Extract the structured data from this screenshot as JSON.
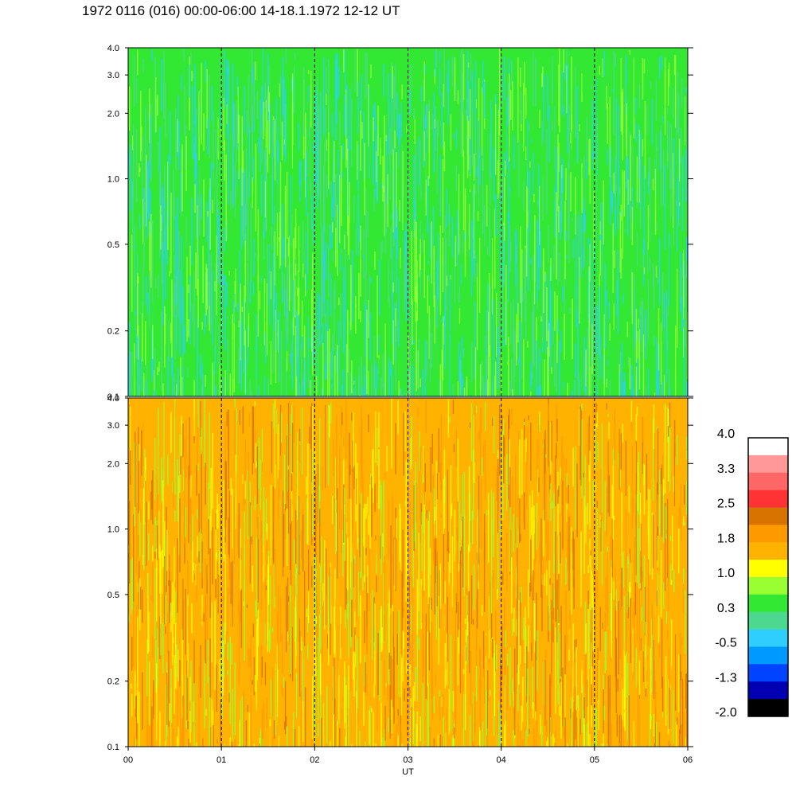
{
  "title": "1972 0116 (016) 00:00-06:00 14-18.1.1972  12-12 UT",
  "chart_data": [
    {
      "type": "heatmap",
      "panel": "top",
      "x_range": [
        "00",
        "06"
      ],
      "y_ticks": [
        "0.1",
        "0.2",
        "0.5",
        "1.0",
        "2.0",
        "3.0",
        "4.0"
      ],
      "y_values": [
        0.1,
        0.2,
        0.5,
        1.0,
        2.0,
        3.0,
        4.0
      ],
      "ylim": [
        0.1,
        4.0
      ],
      "yscale": "log",
      "dominant_colors": [
        "#33e833",
        "#4dd88f",
        "#99ff33",
        "#2ecfff"
      ],
      "vertical_grid": "dashed at each hour"
    },
    {
      "type": "heatmap",
      "panel": "bottom",
      "x_range": [
        "00",
        "06"
      ],
      "y_ticks": [
        "0.1",
        "0.2",
        "0.5",
        "1.0",
        "2.0",
        "3.0",
        "4.0"
      ],
      "y_values": [
        0.1,
        0.2,
        0.5,
        1.0,
        2.0,
        3.0,
        4.0
      ],
      "ylim": [
        0.1,
        4.0
      ],
      "yscale": "log",
      "dominant_colors": [
        "#ffb300",
        "#ff9900",
        "#ffff00",
        "#99ff33",
        "#d97300"
      ],
      "vertical_grid": "dashed at each hour"
    }
  ],
  "x_axis": {
    "ticks": [
      "00",
      "01",
      "02",
      "03",
      "04",
      "05",
      "06"
    ],
    "label": "UT"
  },
  "colorbar": {
    "labels": [
      "4.0",
      "3.3",
      "2.5",
      "1.8",
      "1.0",
      "0.3",
      "-0.5",
      "-1.3",
      "-2.0"
    ],
    "colors_top_to_bottom": [
      "#ffffff",
      "#ff9999",
      "#ff6666",
      "#ff3333",
      "#d97300",
      "#ff9900",
      "#ffb300",
      "#ffff00",
      "#99ff33",
      "#33e833",
      "#4dd88f",
      "#2ecfff",
      "#0099ff",
      "#0044ff",
      "#0000b3",
      "#000000"
    ]
  }
}
